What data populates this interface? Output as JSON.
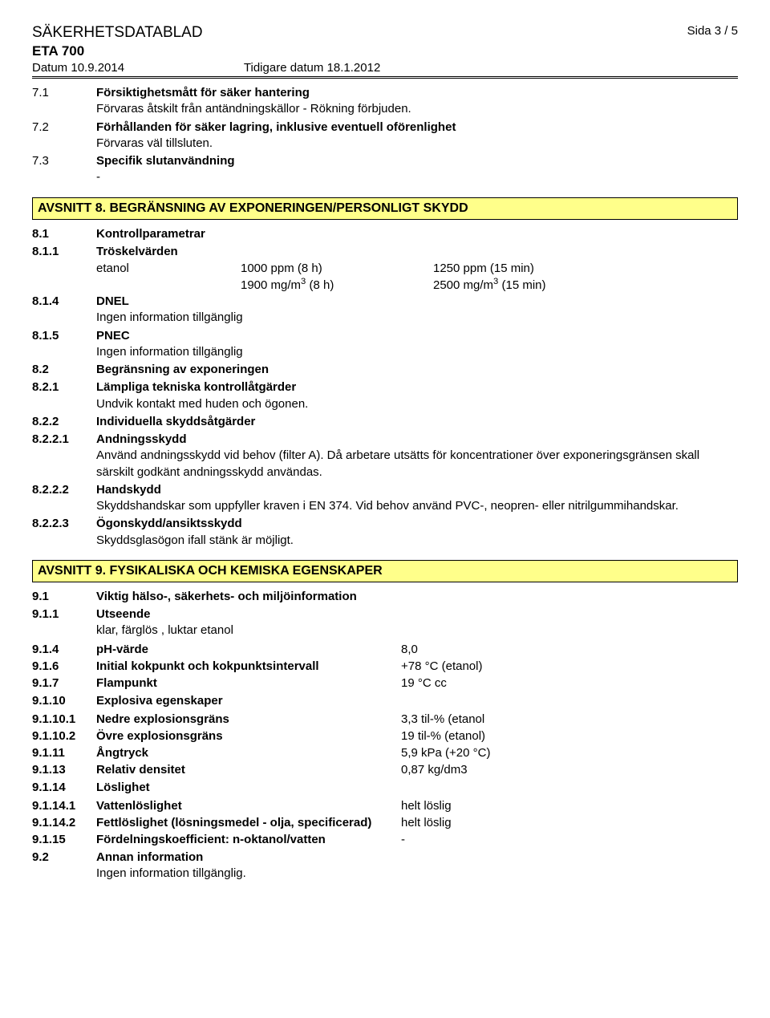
{
  "header": {
    "doc_title": "SÄKERHETSDATABLAD",
    "page_label": "Sida  3 / 5",
    "product": "ETA 700",
    "date_label": "Datum 10.9.2014",
    "prev_date_label": "Tidigare datum 18.1.2012"
  },
  "sec7": {
    "r1_num": "7.1",
    "r1_title": "Försiktighetsmått för säker hantering",
    "r1_body": "Förvaras åtskilt från antändningskällor - Rökning förbjuden.",
    "r2_num": "7.2",
    "r2_title": "Förhållanden för säker lagring, inklusive eventuell oförenlighet",
    "r2_body": "Förvaras väl tillsluten.",
    "r3_num": "7.3",
    "r3_title": "Specifik slutanvändning",
    "r3_body": "-"
  },
  "sec8": {
    "header": "AVSNITT 8. BEGRÄNSNING AV EXPONERINGEN/PERSONLIGT SKYDD",
    "r81_num": "8.1",
    "r81_title": "Kontrollparametrar",
    "r811_num": "8.1.1",
    "r811_title": "Tröskelvärden",
    "etanol_label": "etanol",
    "etanol_a1": "1000 ppm (8 h)",
    "etanol_a2": "1250 ppm (15 min)",
    "etanol_b1_pre": "1900 mg/m",
    "etanol_b1_post": " (8 h)",
    "etanol_b2_pre": "2500 mg/m",
    "etanol_b2_post": " (15 min)",
    "r814_num": "8.1.4",
    "r814_title": "DNEL",
    "r814_body": "Ingen information tillgänglig",
    "r815_num": "8.1.5",
    "r815_title": "PNEC",
    "r815_body": "Ingen information tillgänglig",
    "r82_num": "8.2",
    "r82_title": "Begränsning av exponeringen",
    "r821_num": "8.2.1",
    "r821_title": "Lämpliga tekniska kontrollåtgärder",
    "r821_body": "Undvik kontakt med huden och ögonen.",
    "r822_num": "8.2.2",
    "r822_title": "Individuella skyddsåtgärder",
    "r8221_num": "8.2.2.1",
    "r8221_title": "Andningsskydd",
    "r8221_body": "Använd andningsskydd vid behov (filter A). Då arbetare utsätts för koncentrationer över exponeringsgränsen skall särskilt godkänt andningsskydd användas.",
    "r8222_num": "8.2.2.2",
    "r8222_title": "Handskydd",
    "r8222_body": "Skyddshandskar som uppfyller kraven i EN 374. Vid behov använd PVC-, neopren- eller nitrilgummihandskar.",
    "r8223_num": "8.2.2.3",
    "r8223_title": "Ögonskydd/ansiktsskydd",
    "r8223_body": "Skyddsglasögon ifall stänk är möjligt."
  },
  "sec9": {
    "header": "AVSNITT 9. FYSIKALISKA OCH KEMISKA EGENSKAPER",
    "r91_num": "9.1",
    "r91_title": "Viktig hälso-, säkerhets- och miljöinformation",
    "r911_num": "9.1.1",
    "r911_title": "Utseende",
    "r911_body": "klar, färglös , luktar etanol",
    "props": [
      {
        "num": "9.1.4",
        "label": "pH-värde",
        "val": "8,0"
      },
      {
        "num": "9.1.6",
        "label": "Initial kokpunkt och kokpunktsintervall",
        "val": "+78 °C (etanol)"
      },
      {
        "num": "9.1.7",
        "label": "Flampunkt",
        "val": "19 °C cc"
      }
    ],
    "r9110_num": "9.1.10",
    "r9110_title": "Explosiva egenskaper",
    "props2": [
      {
        "num": "9.1.10.1",
        "label": "Nedre explosionsgräns",
        "val": "3,3 til-% (etanol"
      },
      {
        "num": "9.1.10.2",
        "label": "Övre explosionsgräns",
        "val": "19 til-% (etanol)"
      },
      {
        "num": "9.1.11",
        "label": "Ångtryck",
        "val": "5,9 kPa (+20 °C)"
      },
      {
        "num": "9.1.13",
        "label": "Relativ densitet",
        "val": "0,87 kg/dm3"
      }
    ],
    "r9114_num": "9.1.14",
    "r9114_title": "Löslighet",
    "props3": [
      {
        "num": "9.1.14.1",
        "label": "Vattenlöslighet",
        "val": "helt löslig"
      },
      {
        "num": "9.1.14.2",
        "label": "Fettlöslighet (lösningsmedel - olja, specificerad)",
        "val": "helt löslig"
      },
      {
        "num": "9.1.15",
        "label": "Fördelningskoefficient: n-oktanol/vatten",
        "val": "-"
      }
    ],
    "r92_num": "9.2",
    "r92_title": "Annan information",
    "r92_body": "Ingen information tillgänglig."
  },
  "colors": {
    "section_bg": "#ffff8a",
    "text": "#000000",
    "page_bg": "#ffffff"
  }
}
